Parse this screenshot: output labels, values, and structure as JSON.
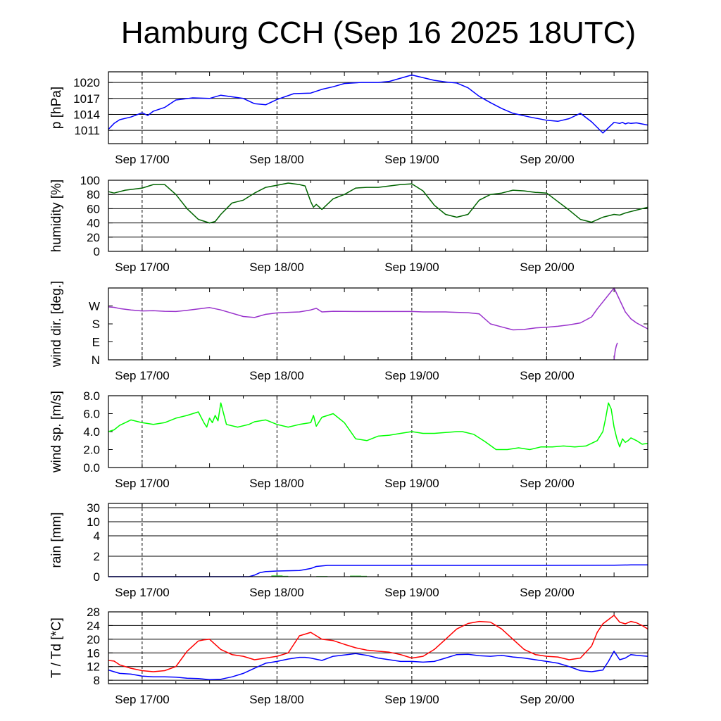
{
  "title": "Hamburg CCH (Sep 16 2025 18UTC)",
  "x_tick_labels": [
    "Sep 17/00",
    "Sep 18/00",
    "Sep 19/00",
    "Sep 20/00"
  ],
  "chart_data": [
    {
      "type": "line",
      "ylabel": "p [hPa]",
      "x_unit": "hours since Sep 16 18UTC",
      "xlim": [
        0,
        96
      ],
      "ylim": [
        1008.5,
        1022.0
      ],
      "yticks": [
        1011,
        1014,
        1017,
        1020
      ],
      "ytick_labels": [
        "1011",
        "1014",
        "1017",
        "1020"
      ],
      "grid": true,
      "series": [
        {
          "color": "#0000ff",
          "x": [
            0,
            1,
            2,
            4,
            6,
            7,
            8,
            10,
            12,
            15,
            18,
            20,
            24,
            26,
            28,
            30,
            33,
            36,
            38,
            40,
            42,
            45,
            48,
            50,
            54,
            58,
            60,
            62,
            64,
            66,
            68,
            70,
            72,
            75,
            78,
            80,
            82,
            84,
            86,
            88,
            90,
            91,
            91.5,
            92,
            92.5,
            93,
            94,
            96
          ],
          "y": [
            1011.2,
            1012.3,
            1013.0,
            1013.5,
            1014.3,
            1013.8,
            1014.6,
            1015.3,
            1016.7,
            1017.1,
            1017.0,
            1017.6,
            1017.0,
            1016.0,
            1015.8,
            1016.8,
            1017.9,
            1018.0,
            1018.7,
            1019.2,
            1019.8,
            1020.0,
            1020.0,
            1020.2,
            1021.4,
            1020.4,
            1020.1,
            1019.9,
            1019.0,
            1017.4,
            1016.2,
            1015.1,
            1014.2,
            1013.5,
            1012.9,
            1012.7,
            1013.2,
            1014.2,
            1012.6,
            1010.5,
            1012.5,
            1012.3,
            1012.5,
            1012.2,
            1012.4,
            1012.3,
            1012.4,
            1012.0
          ]
        }
      ]
    },
    {
      "type": "line",
      "ylabel": "humidity [%]",
      "x_unit": "hours since Sep 16 18UTC",
      "xlim": [
        0,
        96
      ],
      "ylim": [
        0,
        100
      ],
      "yticks": [
        0,
        20,
        40,
        60,
        80,
        100
      ],
      "ytick_labels": [
        "0",
        "20",
        "40",
        "60",
        "80",
        "100"
      ],
      "grid": true,
      "series": [
        {
          "color": "#006400",
          "x": [
            0,
            1,
            3,
            5,
            6,
            8,
            10,
            12,
            14,
            16,
            18,
            19,
            20,
            22,
            24,
            26,
            28,
            30,
            32,
            34,
            35,
            36,
            36.5,
            37,
            38,
            40,
            42,
            44,
            46,
            48,
            50,
            52,
            54,
            56,
            58,
            60,
            62,
            64,
            66,
            68,
            70,
            72,
            74,
            76,
            78,
            80,
            82,
            84,
            86,
            88,
            90,
            91,
            92,
            94,
            96
          ],
          "y": [
            84,
            82,
            86,
            88,
            89,
            94,
            94,
            80,
            60,
            45,
            40,
            42,
            52,
            68,
            72,
            82,
            90,
            93,
            96,
            94,
            92,
            70,
            62,
            66,
            59,
            74,
            80,
            89,
            90,
            90,
            92,
            94,
            95,
            85,
            65,
            52,
            48,
            52,
            72,
            80,
            82,
            86,
            85,
            83,
            82,
            70,
            58,
            45,
            41,
            48,
            52,
            51,
            54,
            58,
            62
          ]
        }
      ]
    },
    {
      "type": "line",
      "ylabel": "wind dir. [deg.]",
      "x_unit": "hours since Sep 16 18UTC",
      "xlim": [
        0,
        96
      ],
      "ylim": [
        0,
        360
      ],
      "yticks": [
        0,
        90,
        180,
        270
      ],
      "ytick_labels": [
        "N",
        "E",
        "S",
        "W"
      ],
      "grid": false,
      "series": [
        {
          "color": "#9932cc",
          "x": [
            0,
            1,
            2,
            4,
            6,
            8,
            10,
            12,
            14,
            16,
            18,
            20,
            24,
            26,
            28,
            30,
            32,
            34,
            36,
            37,
            38,
            40,
            44,
            48,
            52,
            54,
            56,
            60,
            62,
            64,
            66,
            68,
            70,
            72,
            74,
            76,
            78,
            80,
            82,
            84,
            86,
            87,
            88,
            90,
            91,
            92,
            93,
            94,
            96
          ],
          "y": [
            265,
            263,
            257,
            250,
            245,
            246,
            243,
            242,
            248,
            255,
            262,
            250,
            217,
            212,
            228,
            235,
            238,
            240,
            250,
            258,
            240,
            243,
            242,
            242,
            242,
            242,
            240,
            240,
            238,
            236,
            230,
            180,
            165,
            150,
            152,
            160,
            163,
            168,
            175,
            185,
            215,
            255,
            290,
            360,
            300,
            240,
            205,
            185,
            155
          ]
        },
        {
          "color": "#9932cc",
          "x": [
            90,
            90.2,
            90.4,
            90.6
          ],
          "y": [
            0,
            45,
            70,
            85
          ]
        }
      ]
    },
    {
      "type": "line",
      "ylabel": "wind sp. [m/s]",
      "x_unit": "hours since Sep 16 18UTC",
      "xlim": [
        0,
        96
      ],
      "ylim": [
        0,
        8
      ],
      "yticks": [
        0,
        2,
        4,
        6,
        8
      ],
      "ytick_labels": [
        "0.0",
        "2.0",
        "4.0",
        "6.0",
        "8.0"
      ],
      "grid": false,
      "series": [
        {
          "color": "#00ff00",
          "x": [
            0,
            1,
            2,
            3,
            4,
            6,
            8,
            10,
            12,
            14,
            16,
            17,
            17.5,
            18,
            18.5,
            19,
            19.5,
            20,
            21,
            23,
            25,
            26,
            28,
            30,
            32,
            34,
            36,
            36.5,
            37,
            38,
            40,
            42,
            44,
            46,
            48,
            50,
            52,
            54,
            56,
            58,
            60,
            62,
            63,
            65,
            67,
            69,
            71,
            73,
            75,
            77,
            79,
            81,
            83,
            85,
            87,
            88,
            88.5,
            89,
            89.5,
            90,
            90.5,
            91,
            91.5,
            92,
            92.5,
            93,
            94,
            95,
            96
          ],
          "y": [
            4.0,
            4.2,
            4.7,
            5.0,
            5.3,
            5.0,
            4.8,
            5.0,
            5.5,
            5.8,
            6.2,
            5.0,
            4.5,
            5.5,
            5.0,
            5.8,
            5.2,
            7.2,
            4.8,
            4.5,
            4.8,
            5.1,
            5.3,
            4.8,
            4.5,
            4.8,
            5.0,
            5.8,
            4.6,
            5.6,
            6.0,
            5.0,
            3.2,
            3.0,
            3.5,
            3.6,
            3.8,
            4.0,
            3.8,
            3.8,
            3.9,
            4.0,
            4.0,
            3.7,
            2.9,
            2.0,
            2.0,
            2.2,
            2.0,
            2.3,
            2.3,
            2.4,
            2.3,
            2.4,
            3.0,
            4.0,
            5.5,
            7.2,
            6.5,
            4.5,
            3.2,
            2.3,
            3.2,
            2.8,
            3.0,
            3.3,
            3.0,
            2.6,
            2.7
          ]
        }
      ]
    },
    {
      "type": "line",
      "ylabel": "rain [mm]",
      "x_unit": "hours since Sep 16 18UTC",
      "xlim": [
        0,
        96
      ],
      "ylim": [
        0,
        40
      ],
      "yticks": [
        0,
        2,
        4,
        10,
        30
      ],
      "ytick_labels": [
        "0",
        "2",
        "4",
        "10",
        "30"
      ],
      "grid": true,
      "series": [
        {
          "color": "#0000ff",
          "x": [
            0,
            25,
            26,
            27,
            28,
            30,
            34,
            35,
            36,
            36.5,
            37,
            38,
            39,
            40,
            44,
            48,
            60,
            72,
            90,
            93,
            96
          ],
          "y": [
            0,
            0,
            0.15,
            0.4,
            0.5,
            0.55,
            0.6,
            0.7,
            0.8,
            0.9,
            1.0,
            1.05,
            1.1,
            1.1,
            1.1,
            1.1,
            1.1,
            1.1,
            1.12,
            1.15,
            1.15
          ]
        }
      ],
      "bars": {
        "color": "#32cd32",
        "x": [
          29.5,
          30.5,
          31.5,
          37.5,
          38.5,
          43.5,
          44.5,
          45.5
        ],
        "y": [
          0.12,
          0.12,
          0.08,
          0.06,
          0.06,
          0.1,
          0.1,
          0.08
        ]
      }
    },
    {
      "type": "line",
      "ylabel": "T / Td [*C]",
      "x_unit": "hours since Sep 16 18UTC",
      "xlim": [
        0,
        96
      ],
      "ylim": [
        7,
        28
      ],
      "yticks": [
        8,
        12,
        16,
        20,
        24,
        28
      ],
      "ytick_labels": [
        "8",
        "12",
        "16",
        "20",
        "24",
        "28"
      ],
      "grid": true,
      "series": [
        {
          "color": "#ff0000",
          "x": [
            0,
            1,
            2,
            4,
            6,
            8,
            10,
            12,
            14,
            16,
            17,
            18,
            20,
            22,
            24,
            26,
            28,
            30,
            32,
            33,
            34,
            35,
            36,
            38,
            40,
            42,
            44,
            46,
            48,
            50,
            52,
            54,
            56,
            58,
            60,
            62,
            64,
            66,
            68,
            70,
            72,
            74,
            76,
            78,
            80,
            82,
            84,
            86,
            87,
            88,
            90,
            91,
            92,
            93,
            94,
            95,
            96
          ],
          "y": [
            13.8,
            13.6,
            12.5,
            11.5,
            10.8,
            10.5,
            10.8,
            12.0,
            16.5,
            19.5,
            19.8,
            20.0,
            17.0,
            15.5,
            15.0,
            14.0,
            14.5,
            15.0,
            16.0,
            18.5,
            21.0,
            21.5,
            22.0,
            20.0,
            19.6,
            18.5,
            17.5,
            16.8,
            16.5,
            16.2,
            15.5,
            14.5,
            15.0,
            17.0,
            20.0,
            23.0,
            24.6,
            25.2,
            25.0,
            23.0,
            20.0,
            17.0,
            15.5,
            15.0,
            14.8,
            14.0,
            14.5,
            18.0,
            22.0,
            24.5,
            27.0,
            25.0,
            24.5,
            25.2,
            24.8,
            24.0,
            23.0
          ]
        },
        {
          "color": "#0000ff",
          "x": [
            0,
            2,
            4,
            6,
            8,
            10,
            12,
            14,
            16,
            18,
            20,
            22,
            24,
            26,
            28,
            30,
            32,
            34,
            35,
            36,
            38,
            40,
            42,
            44,
            46,
            48,
            50,
            52,
            54,
            56,
            58,
            60,
            62,
            64,
            66,
            68,
            70,
            72,
            74,
            76,
            78,
            80,
            82,
            84,
            86,
            88,
            89,
            90,
            91,
            92,
            93,
            94,
            96
          ],
          "y": [
            11.0,
            10.0,
            9.8,
            9.2,
            9.0,
            9.0,
            8.9,
            8.6,
            8.5,
            8.2,
            8.3,
            9.0,
            10.0,
            11.5,
            13.0,
            13.5,
            14.2,
            14.7,
            14.7,
            14.5,
            13.8,
            15.0,
            15.4,
            15.8,
            15.3,
            14.5,
            14.0,
            13.5,
            13.5,
            13.3,
            13.5,
            14.5,
            15.5,
            15.6,
            15.2,
            15.0,
            15.3,
            14.8,
            14.5,
            14.0,
            13.5,
            13.0,
            12.0,
            10.8,
            10.5,
            11.0,
            13.5,
            16.5,
            14.0,
            14.5,
            15.5,
            15.3,
            15.0
          ]
        }
      ]
    }
  ]
}
